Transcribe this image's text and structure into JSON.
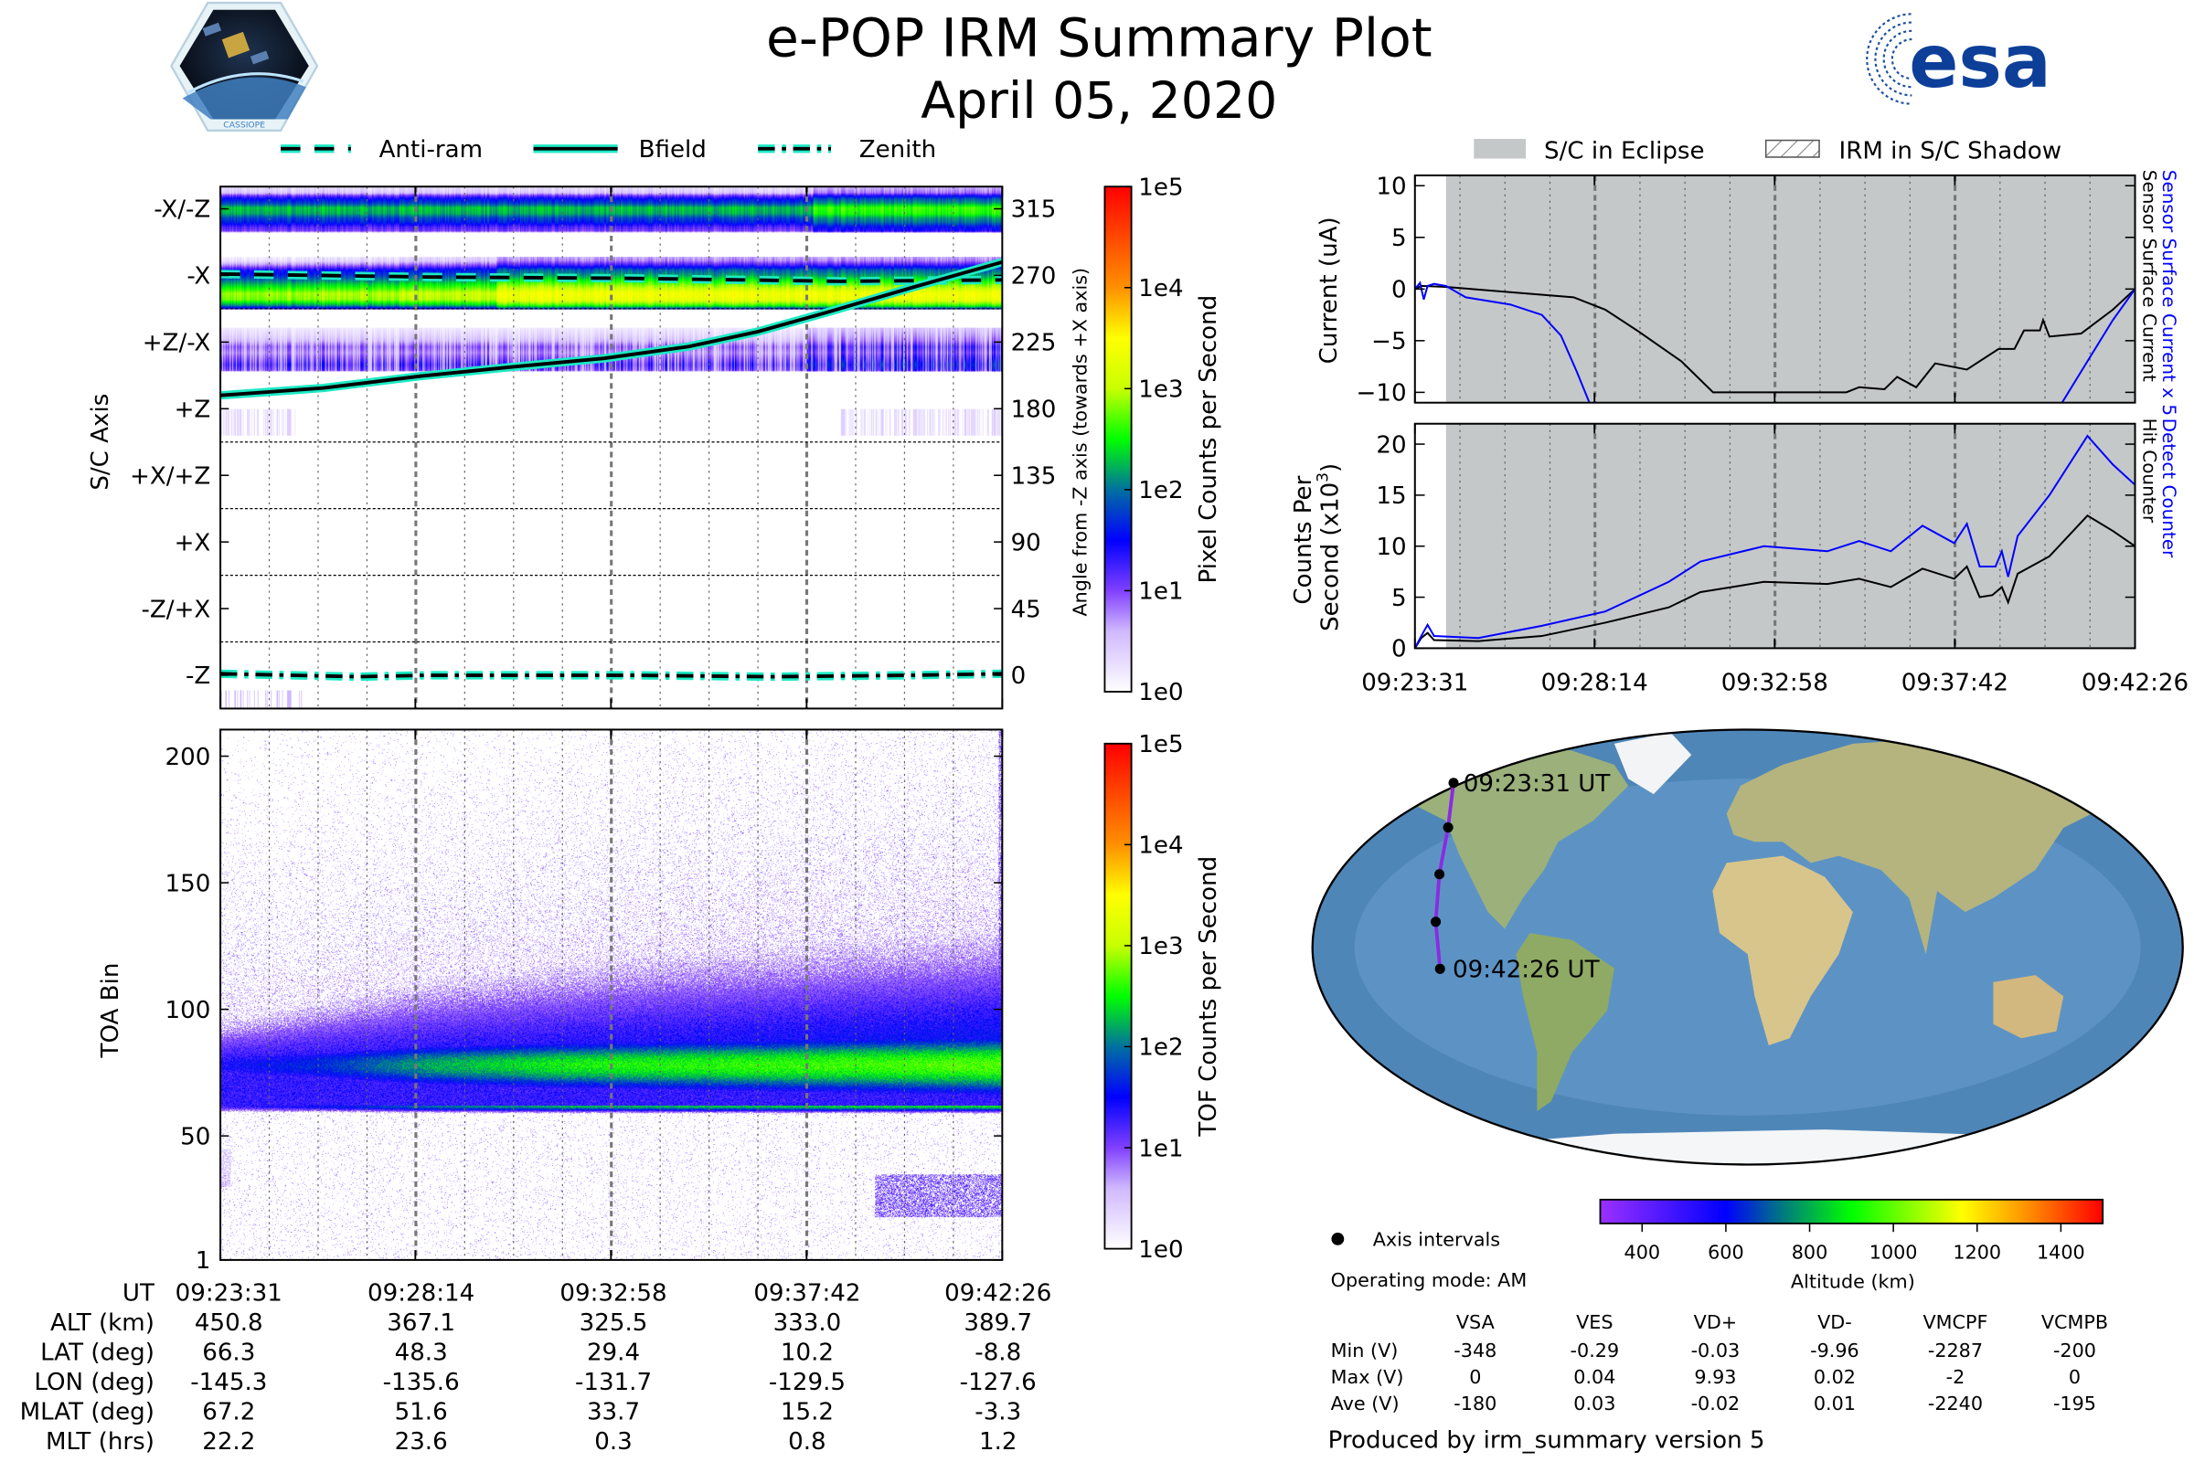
{
  "header": {
    "title": "e-POP IRM Summary Plot",
    "date": "April 05, 2020",
    "logo_left_text": "CASSIOPE",
    "logo_right_text": "esa"
  },
  "legend_left": {
    "items": [
      {
        "label": "Anti-ram",
        "style": "dashed"
      },
      {
        "label": "Bfield",
        "style": "solid"
      },
      {
        "label": "Zenith",
        "style": "dashdot"
      }
    ],
    "line_color": "#000000",
    "halo_color": "#1de9c4"
  },
  "legend_right": {
    "eclipse": "S/C in Eclipse",
    "shadow": "IRM in S/C Shadow",
    "eclipse_color": "#c5c8c8"
  },
  "time_ticks": [
    "09:23:31",
    "09:28:14",
    "09:32:58",
    "09:37:42",
    "09:42:26"
  ],
  "time_tick_seconds": [
    0,
    283,
    567,
    851,
    1135
  ],
  "chart_data": [
    {
      "id": "pixel",
      "type": "heatmap",
      "ylabel": "S/C Axis",
      "y2label": "Angle from -Z axis (towards +X axis)",
      "ylim": [
        -22.5,
        330
      ],
      "xlim_s": [
        0,
        1135
      ],
      "axis_ticks": [
        {
          "label": "-X/-Z",
          "angle": 315
        },
        {
          "label": "-X",
          "angle": 270
        },
        {
          "label": "+Z/-X",
          "angle": 225
        },
        {
          "label": "+Z",
          "angle": 180
        },
        {
          "label": "+X/+Z",
          "angle": 135
        },
        {
          "label": "+X",
          "angle": 90
        },
        {
          "label": "-Z/+X",
          "angle": 45
        },
        {
          "label": "-Z",
          "angle": 0
        }
      ],
      "angle_ticks": [
        "315",
        "270",
        "225",
        "180",
        "135",
        "90",
        "45",
        "0"
      ],
      "sector_boundaries": [
        247.5,
        157.5,
        112.5,
        67.5,
        22.5
      ],
      "colorbar": {
        "label": "Pixel Counts per Second",
        "ticks": [
          "1e0",
          "1e1",
          "1e2",
          "1e3",
          "1e4",
          "1e5"
        ]
      },
      "bands": [
        {
          "name": "-X/-Z",
          "profile": [
            [
              299,
              0
            ],
            [
              300,
              1.0
            ],
            [
              303,
              1.2
            ],
            [
              306,
              1.6
            ],
            [
              309,
              1.8
            ],
            [
              312,
              2.2
            ],
            [
              316,
              2.3
            ],
            [
              319,
              1.8
            ],
            [
              322,
              1.5
            ],
            [
              324,
              1.1
            ],
            [
              326,
              0.5
            ],
            [
              330,
              0.2
            ]
          ],
          "late_boost": 0.35,
          "late_start_s": 860
        },
        {
          "name": "-X",
          "profile": [
            [
              247.5,
              1.4
            ],
            [
              250,
              2.3
            ],
            [
              254,
              3.0
            ],
            [
              258,
              3.1
            ],
            [
              262,
              2.7
            ],
            [
              266,
              2.3
            ],
            [
              270,
              1.9
            ],
            [
              274,
              1.6
            ],
            [
              277,
              1.0
            ],
            [
              280,
              0.5
            ],
            [
              283,
              0.3
            ]
          ],
          "late_boost": 0.3,
          "late_start_s": 400
        },
        {
          "name": "+Z/-X",
          "profile": [
            [
              205,
              0
            ],
            [
              206,
              1.1
            ],
            [
              210,
              1.3
            ],
            [
              215,
              1.0
            ],
            [
              218,
              0.8
            ],
            [
              222,
              1.0
            ],
            [
              226,
              0.6
            ],
            [
              230,
              0.4
            ],
            [
              235,
              0.2
            ]
          ],
          "late_boost": 0.3,
          "late_start_s": 850
        }
      ],
      "lines": {
        "bfield": [
          [
            0,
            189
          ],
          [
            60,
            191
          ],
          [
            150,
            194
          ],
          [
            290,
            202
          ],
          [
            420,
            208
          ],
          [
            557,
            214
          ],
          [
            680,
            222
          ],
          [
            780,
            232
          ],
          [
            880,
            245
          ],
          [
            1005,
            262
          ],
          [
            1135,
            279
          ]
        ],
        "antiram": [
          [
            0,
            271
          ],
          [
            300,
            269
          ],
          [
            600,
            268
          ],
          [
            900,
            266
          ],
          [
            1135,
            267
          ]
        ],
        "zenith": [
          [
            0,
            1
          ],
          [
            200,
            -1
          ],
          [
            300,
            0
          ],
          [
            600,
            0
          ],
          [
            800,
            -1
          ],
          [
            1000,
            0
          ],
          [
            1135,
            1
          ]
        ]
      }
    },
    {
      "id": "tof",
      "type": "heatmap",
      "ylabel": "TOA Bin",
      "ylim": [
        1,
        210.5
      ],
      "yticks": [
        "1",
        "50",
        "100",
        "150",
        "200"
      ],
      "ytick_values": [
        1,
        50,
        100,
        150,
        200
      ],
      "colorbar": {
        "label": "TOF Counts per Second",
        "ticks": [
          "1e0",
          "1e1",
          "1e2",
          "1e3",
          "1e4",
          "1e5"
        ]
      },
      "core_center_bin": 78,
      "lower_edge_bin": 62,
      "peak_log_counts": [
        [
          0,
          1.4
        ],
        [
          150,
          1.7
        ],
        [
          300,
          2.2
        ],
        [
          500,
          2.5
        ],
        [
          800,
          2.6
        ],
        [
          1135,
          2.7
        ]
      ],
      "upper_tail_extent_bin": [
        [
          0,
          100
        ],
        [
          300,
          120
        ],
        [
          600,
          130
        ],
        [
          1135,
          140
        ]
      ]
    },
    {
      "id": "current",
      "type": "line",
      "ylabel": "Current (uA)",
      "right_labels": [
        {
          "text": "Sensor Surface Current x 5",
          "color": "#0000ff"
        },
        {
          "text": "Sensor Surface Current",
          "color": "#000000"
        }
      ],
      "ylim": [
        -11,
        11
      ],
      "yticks": [
        "10",
        "5",
        "0",
        "−5",
        "−10"
      ],
      "ytick_values": [
        10,
        5,
        0,
        -5,
        -10
      ],
      "eclipse_start_s": 49,
      "series": [
        {
          "name": "Sensor Surface Current",
          "color": "#000000",
          "points": [
            [
              0,
              0
            ],
            [
              10,
              0.3
            ],
            [
              49,
              0.2
            ],
            [
              150,
              -0.3
            ],
            [
              250,
              -0.8
            ],
            [
              300,
              -2
            ],
            [
              350,
              -4
            ],
            [
              420,
              -7
            ],
            [
              470,
              -10
            ],
            [
              680,
              -10
            ],
            [
              700,
              -9.5
            ],
            [
              740,
              -9.7
            ],
            [
              760,
              -8.5
            ],
            [
              790,
              -9.5
            ],
            [
              820,
              -7.2
            ],
            [
              870,
              -7.8
            ],
            [
              920,
              -5.8
            ],
            [
              945,
              -5.8
            ],
            [
              960,
              -4
            ],
            [
              985,
              -4
            ],
            [
              990,
              -3
            ],
            [
              1000,
              -4.6
            ],
            [
              1050,
              -4.3
            ],
            [
              1100,
              -2
            ],
            [
              1135,
              0
            ]
          ]
        },
        {
          "name": "Sensor Surface Current x 5",
          "color": "#0000ff",
          "points": [
            [
              0,
              0
            ],
            [
              8,
              0.6
            ],
            [
              14,
              -1
            ],
            [
              20,
              0.3
            ],
            [
              30,
              0.5
            ],
            [
              49,
              0.3
            ],
            [
              80,
              -0.8
            ],
            [
              150,
              -1.5
            ],
            [
              200,
              -2.5
            ],
            [
              230,
              -4.5
            ],
            [
              255,
              -8
            ],
            [
              275,
              -11
            ],
            null,
            [
              1020,
              -11
            ],
            [
              1060,
              -7
            ],
            [
              1100,
              -3
            ],
            [
              1135,
              0
            ]
          ]
        }
      ]
    },
    {
      "id": "counts",
      "type": "line",
      "ylabel_line1": "Counts Per",
      "ylabel_line2": "Second (x10",
      "ylabel_sup": "3",
      "ylabel_close": ")",
      "right_labels": [
        {
          "text": "Detect Counter",
          "color": "#0000ff"
        },
        {
          "text": "Hit Counter",
          "color": "#000000"
        }
      ],
      "ylim": [
        0,
        22
      ],
      "yticks": [
        "20",
        "15",
        "10",
        "5",
        "0"
      ],
      "ytick_values": [
        20,
        15,
        10,
        5,
        0
      ],
      "eclipse_start_s": 49,
      "series": [
        {
          "name": "Hit Counter",
          "color": "#000000",
          "points": [
            [
              0,
              0
            ],
            [
              10,
              1
            ],
            [
              20,
              1.5
            ],
            [
              30,
              0.8
            ],
            [
              100,
              0.7
            ],
            [
              200,
              1.2
            ],
            [
              300,
              2.5
            ],
            [
              400,
              4
            ],
            [
              450,
              5.5
            ],
            [
              550,
              6.5
            ],
            [
              650,
              6.3
            ],
            [
              700,
              6.8
            ],
            [
              750,
              6
            ],
            [
              800,
              7.8
            ],
            [
              850,
              6.8
            ],
            [
              870,
              8
            ],
            [
              890,
              5
            ],
            [
              910,
              5.2
            ],
            [
              925,
              6
            ],
            [
              935,
              4.5
            ],
            [
              950,
              7.3
            ],
            [
              1000,
              9
            ],
            [
              1060,
              13
            ],
            [
              1100,
              11.5
            ],
            [
              1135,
              10
            ]
          ]
        },
        {
          "name": "Detect Counter",
          "color": "#0000ff",
          "points": [
            [
              0,
              0
            ],
            [
              10,
              1.2
            ],
            [
              20,
              2.3
            ],
            [
              30,
              1.2
            ],
            [
              100,
              1
            ],
            [
              200,
              2.2
            ],
            [
              300,
              3.6
            ],
            [
              400,
              6.5
            ],
            [
              450,
              8.5
            ],
            [
              550,
              10
            ],
            [
              650,
              9.5
            ],
            [
              700,
              10.5
            ],
            [
              750,
              9.5
            ],
            [
              800,
              12
            ],
            [
              850,
              10.3
            ],
            [
              870,
              12.2
            ],
            [
              890,
              8
            ],
            [
              915,
              8
            ],
            [
              925,
              9.5
            ],
            [
              935,
              7
            ],
            [
              950,
              11
            ],
            [
              1000,
              15
            ],
            [
              1060,
              20.8
            ],
            [
              1100,
              18
            ],
            [
              1135,
              16
            ]
          ]
        }
      ]
    },
    {
      "id": "ground_track",
      "type": "scatter",
      "start_label": "09:23:31 UT",
      "end_label": "09:42:26 UT",
      "lat": [
        66.3,
        48.3,
        29.4,
        10.2,
        -8.8
      ],
      "lon": [
        -145.3,
        -135.6,
        -131.7,
        -129.5,
        -127.6
      ],
      "alt_km": [
        450.8,
        367.1,
        325.5,
        333.0,
        389.7
      ]
    }
  ],
  "ephemeris": {
    "rows": [
      {
        "label": "UT",
        "values": [
          "09:23:31",
          "09:28:14",
          "09:32:58",
          "09:37:42",
          "09:42:26"
        ]
      },
      {
        "label": "ALT (km)",
        "values": [
          "450.8",
          "367.1",
          "325.5",
          "333.0",
          "389.7"
        ]
      },
      {
        "label": "LAT (deg)",
        "values": [
          "66.3",
          "48.3",
          "29.4",
          "10.2",
          "-8.8"
        ]
      },
      {
        "label": "LON (deg)",
        "values": [
          "-145.3",
          "-135.6",
          "-131.7",
          "-129.5",
          "-127.6"
        ]
      },
      {
        "label": "MLAT (deg)",
        "values": [
          "67.2",
          "51.6",
          "33.7",
          "15.2",
          "-3.3"
        ]
      },
      {
        "label": "MLT (hrs)",
        "values": [
          "22.2",
          "23.6",
          "0.3",
          "0.8",
          "1.2"
        ]
      }
    ]
  },
  "altitude_colorbar": {
    "label": "Altitude (km)",
    "ticks": [
      "400",
      "600",
      "800",
      "1000",
      "1200",
      "1400"
    ],
    "tick_values": [
      400,
      600,
      800,
      1000,
      1200,
      1400
    ],
    "range": [
      300,
      1500
    ]
  },
  "axis_intervals_label": "Axis intervals",
  "operating_mode": "Operating mode: AM",
  "voltages": {
    "columns": [
      "VSA",
      "VES",
      "VD+",
      "VD-",
      "VMCPF",
      "VCMPB"
    ],
    "rows": [
      {
        "label": "Min (V)",
        "values": [
          "-348",
          "-0.29",
          "-0.03",
          "-9.96",
          "-2287",
          "-200"
        ]
      },
      {
        "label": "Max (V)",
        "values": [
          "0",
          "0.04",
          "9.93",
          "0.02",
          "-2",
          "0"
        ]
      },
      {
        "label": "Ave (V)",
        "values": [
          "-180",
          "0.03",
          "-0.02",
          "0.01",
          "-2240",
          "-195"
        ]
      }
    ]
  },
  "footer": "Produced by irm_summary version 5"
}
